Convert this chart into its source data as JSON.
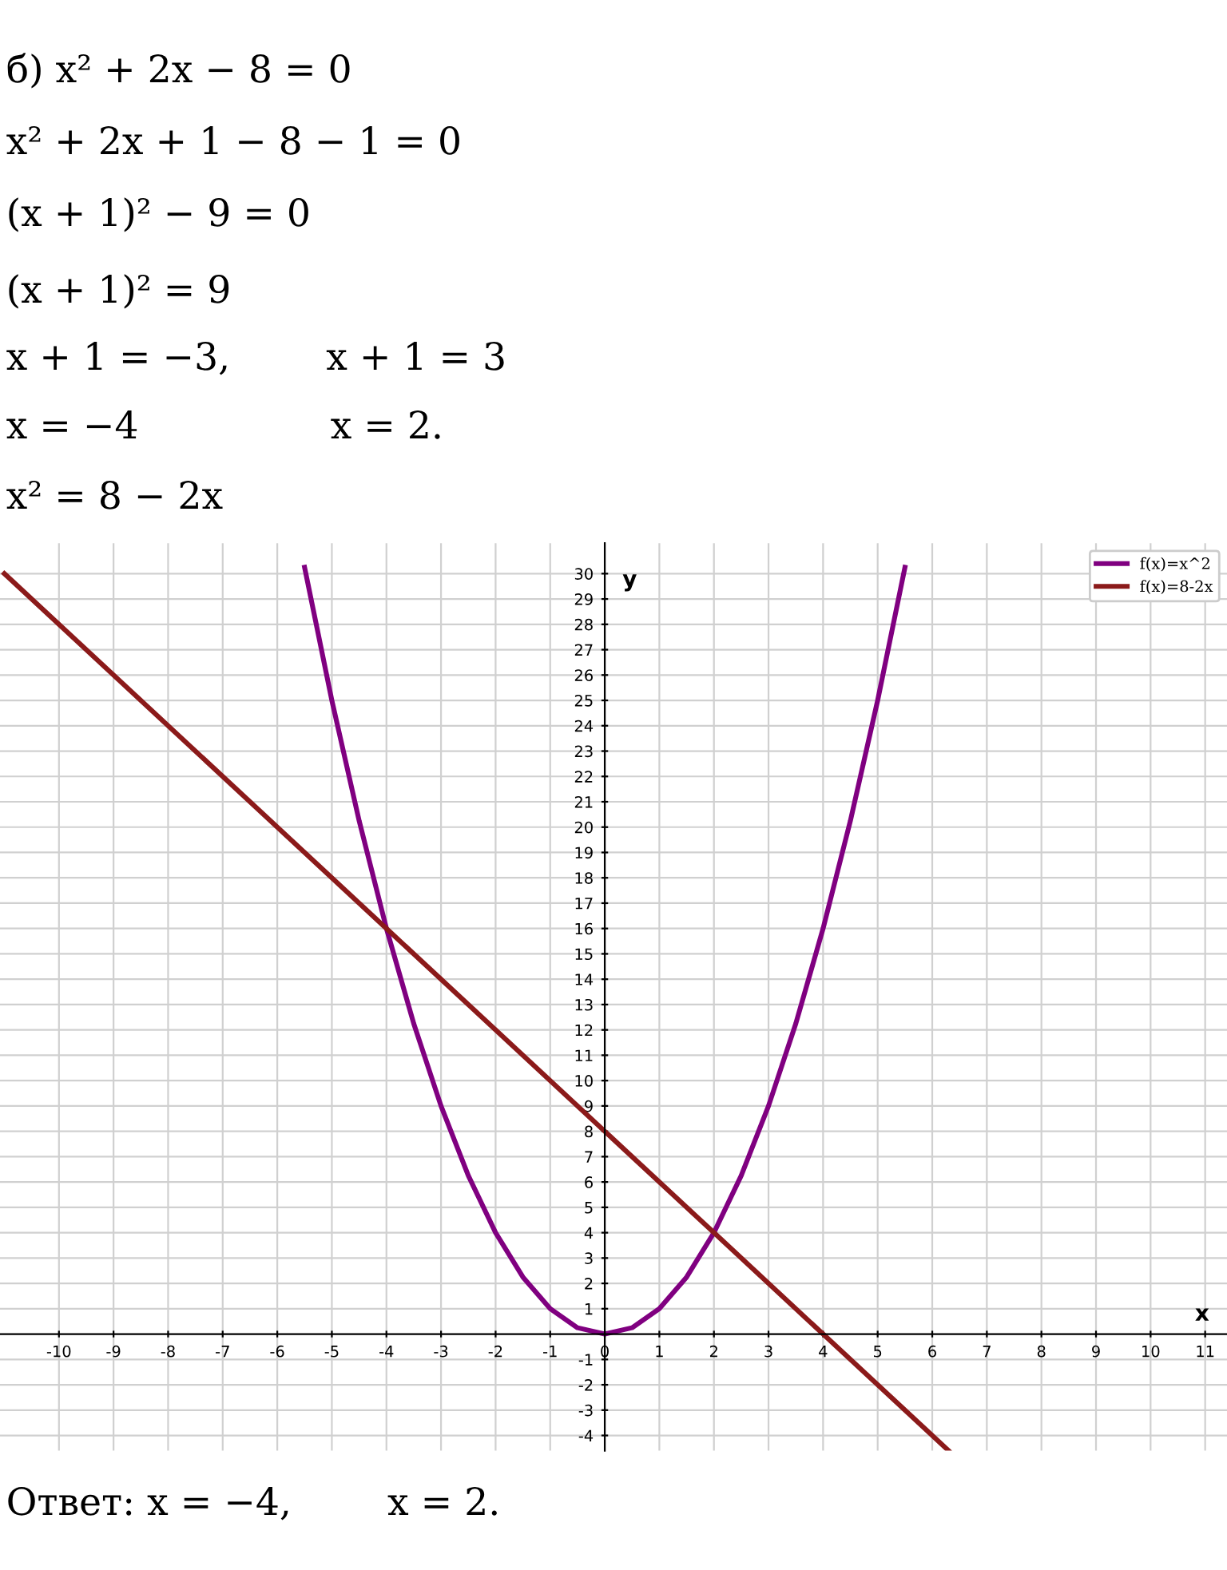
{
  "chart_data": {
    "type": "line",
    "xlabel": "x",
    "ylabel": "y",
    "annotations": [
      "б) x² + 2x − 8 = 0",
      "x² + 2x + 1 − 8 − 1 = 0",
      "(x + 1)² − 9 = 0",
      "(x + 1)² = 9",
      "x + 1 = −3,        x + 1 = 3",
      "x = −4                x = 2.",
      "x² = 8 − 2x",
      "Ответ: x = −4,        x = 2."
    ],
    "series": [
      {
        "name": "f(x)=x^2",
        "color": "#800080",
        "x": [
          -5.5,
          -5,
          -4.5,
          -4,
          -3.5,
          -3,
          -2.5,
          -2,
          -1.5,
          -1,
          -0.5,
          0,
          0.5,
          1,
          1.5,
          2,
          2.5,
          3,
          3.5,
          4,
          4.5,
          5,
          5.5
        ],
        "values": [
          30.25,
          25,
          20.25,
          16,
          12.25,
          9,
          6.25,
          4,
          2.25,
          1,
          0.25,
          0,
          0.25,
          1,
          2.25,
          4,
          6.25,
          9,
          12.25,
          16,
          20.25,
          25,
          30.25
        ]
      },
      {
        "name": "f(x)=8-2x",
        "color": "#8b1a1a",
        "x": [
          -11,
          -4,
          2,
          4,
          6.3
        ],
        "values": [
          30,
          16,
          4,
          0,
          -4.6
        ]
      }
    ],
    "xlim": [
      -11.08,
      11.4
    ],
    "ylim": [
      -4.6,
      31.2
    ],
    "xticks": [
      -10,
      -9,
      -8,
      -7,
      -6,
      -5,
      -4,
      -3,
      -2,
      -1,
      0,
      1,
      2,
      3,
      4,
      5,
      6,
      7,
      8,
      9,
      10,
      11
    ],
    "yticks": [
      -4,
      -3,
      -2,
      -1,
      1,
      2,
      3,
      4,
      5,
      6,
      7,
      8,
      9,
      10,
      11,
      12,
      13,
      14,
      15,
      16,
      17,
      18,
      19,
      20,
      21,
      22,
      23,
      24,
      25,
      26,
      27,
      28,
      29,
      30
    ],
    "grid": true,
    "legend": "top right",
    "marker": "none",
    "line_style": "solid"
  }
}
